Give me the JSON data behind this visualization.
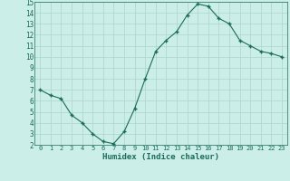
{
  "x": [
    0,
    1,
    2,
    3,
    4,
    5,
    6,
    7,
    8,
    9,
    10,
    11,
    12,
    13,
    14,
    15,
    16,
    17,
    18,
    19,
    20,
    21,
    22,
    23
  ],
  "y": [
    7.0,
    6.5,
    6.2,
    4.7,
    4.0,
    3.0,
    2.3,
    2.1,
    3.2,
    5.3,
    8.0,
    10.5,
    11.5,
    12.3,
    13.8,
    14.8,
    14.6,
    13.5,
    13.0,
    11.5,
    11.0,
    10.5,
    10.3,
    10.0
  ],
  "line_color": "#1a6b5a",
  "marker_color": "#1a6b5a",
  "bg_color": "#cceee8",
  "grid_color": "#aad4cc",
  "xlabel": "Humidex (Indice chaleur)",
  "xlim": [
    -0.5,
    23.5
  ],
  "ylim": [
    2,
    15
  ],
  "yticks": [
    2,
    3,
    4,
    5,
    6,
    7,
    8,
    9,
    10,
    11,
    12,
    13,
    14,
    15
  ],
  "xticks": [
    0,
    1,
    2,
    3,
    4,
    5,
    6,
    7,
    8,
    9,
    10,
    11,
    12,
    13,
    14,
    15,
    16,
    17,
    18,
    19,
    20,
    21,
    22,
    23
  ]
}
